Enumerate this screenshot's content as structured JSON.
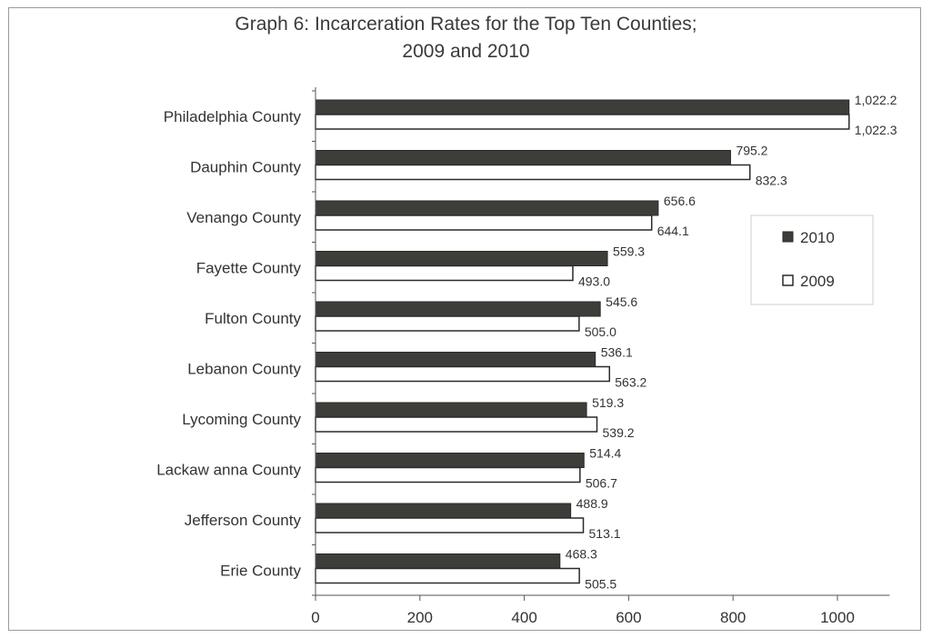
{
  "chart_data": {
    "type": "bar",
    "orientation": "horizontal",
    "title_line1": "Graph 6: Incarceration Rates for the Top Ten Counties;",
    "title_line2": "2009 and 2010",
    "categories": [
      "Philadelphia County",
      "Dauphin County",
      "Venango County",
      "Fayette County",
      "Fulton County",
      "Lebanon County",
      "Lycoming County",
      "Lackaw anna County",
      "Jefferson County",
      "Erie County"
    ],
    "series": [
      {
        "name": "2010",
        "color": "#3d3d3a",
        "values": [
          1022.2,
          795.2,
          656.6,
          559.3,
          545.6,
          536.1,
          519.3,
          514.4,
          488.9,
          468.3
        ],
        "labels": [
          "1,022.2",
          "795.2",
          "656.6",
          "559.3",
          "545.6",
          "536.1",
          "519.3",
          "514.4",
          "488.9",
          "468.3"
        ]
      },
      {
        "name": "2009",
        "color": "#ffffff",
        "values": [
          1022.3,
          832.3,
          644.1,
          493.0,
          505.0,
          563.2,
          539.2,
          506.7,
          513.1,
          505.5
        ],
        "labels": [
          "1,022.3",
          "832.3",
          "644.1",
          "493.0",
          "505.0",
          "563.2",
          "539.2",
          "506.7",
          "513.1",
          "505.5"
        ]
      }
    ],
    "xlim": [
      0,
      1100
    ],
    "xticks": [
      "0",
      "200",
      "400",
      "600",
      "800",
      "1000"
    ],
    "legend": [
      "2010",
      "2009"
    ],
    "legend_position": "right",
    "grid": false
  }
}
